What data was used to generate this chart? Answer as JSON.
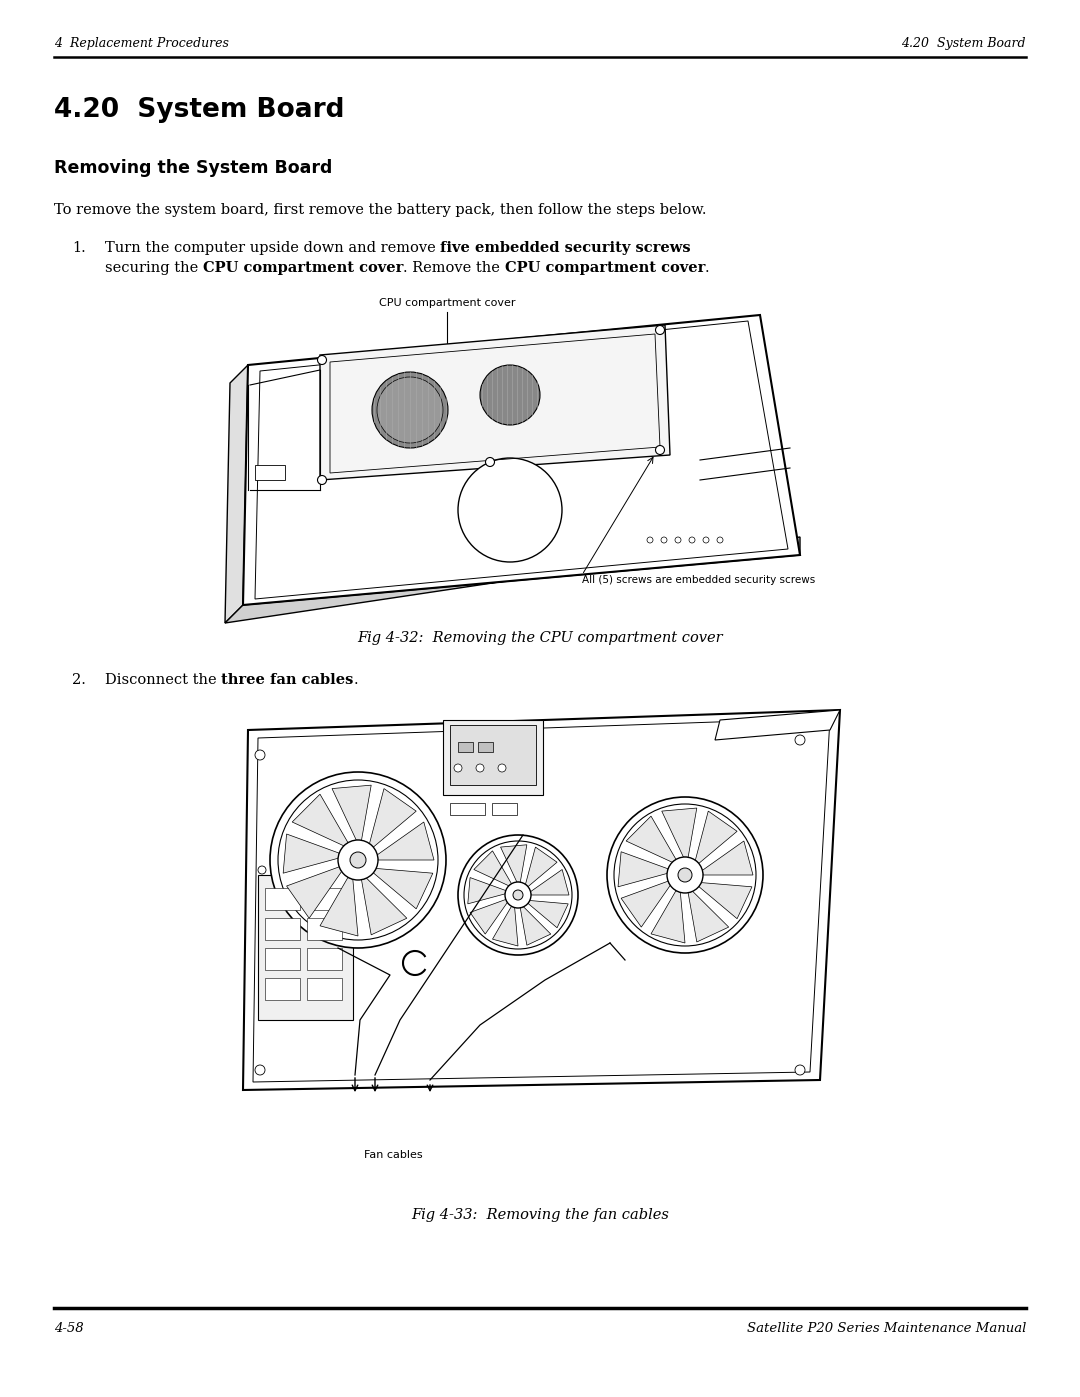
{
  "page_title_left": "4  Replacement Procedures",
  "page_title_right": "4.20  System Board",
  "section_title": "4.20  System Board",
  "subsection_title": "Removing the System Board",
  "intro_text": "To remove the system board, first remove the battery pack, then follow the steps below.",
  "step1_line1_normal": "Turn the computer upside down and remove ",
  "step1_line1_bold": "five embedded security screws",
  "step1_line2_pre": "securing the ",
  "step1_line2_bold1": "CPU compartment cover",
  "step1_line2_mid": ". Remove the ",
  "step1_line2_bold2": "CPU compartment cover",
  "step1_line2_end": ".",
  "fig1_label_top": "CPU compartment cover",
  "fig1_label_bottom": "All (5) screws are embedded security screws",
  "fig1_caption": "Fig 4-32:  Removing the CPU compartment cover",
  "step2_pre": "Disconnect the ",
  "step2_bold": "three fan cables",
  "step2_end": ".",
  "fig2_label": "Fan cables",
  "fig2_caption": "Fig 4-33:  Removing the fan cables",
  "footer_left": "4-58",
  "footer_right": "Satellite P20 Series Maintenance Manual",
  "bg_color": "#ffffff"
}
